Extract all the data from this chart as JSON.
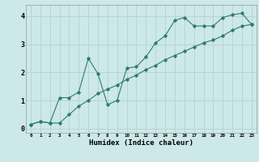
{
  "title": "",
  "xlabel": "Humidex (Indice chaleur)",
  "ylabel": "",
  "bg_color": "#cce8e8",
  "grid_color": "#b8d4d4",
  "line_color": "#2e7b6e",
  "xlim": [
    -0.5,
    23.5
  ],
  "ylim": [
    -0.15,
    4.4
  ],
  "xticks": [
    0,
    1,
    2,
    3,
    4,
    5,
    6,
    7,
    8,
    9,
    10,
    11,
    12,
    13,
    14,
    15,
    16,
    17,
    18,
    19,
    20,
    21,
    22,
    23
  ],
  "yticks": [
    0,
    1,
    2,
    3,
    4
  ],
  "line1_x": [
    0,
    1,
    2,
    3,
    4,
    5,
    6,
    7,
    8,
    9,
    10,
    11,
    12,
    13,
    14,
    15,
    16,
    17,
    18,
    19,
    20,
    21,
    22,
    23
  ],
  "line1_y": [
    0.15,
    0.25,
    0.2,
    1.1,
    1.1,
    1.3,
    2.5,
    1.95,
    0.85,
    1.0,
    2.15,
    2.2,
    2.55,
    3.05,
    3.3,
    3.85,
    3.95,
    3.65,
    3.65,
    3.65,
    3.95,
    4.05,
    4.1,
    3.7
  ],
  "line2_x": [
    0,
    1,
    2,
    3,
    4,
    5,
    6,
    7,
    8,
    9,
    10,
    11,
    12,
    13,
    14,
    15,
    16,
    17,
    18,
    19,
    20,
    21,
    22,
    23
  ],
  "line2_y": [
    0.15,
    0.25,
    0.2,
    0.2,
    0.5,
    0.8,
    1.0,
    1.25,
    1.4,
    1.55,
    1.75,
    1.9,
    2.1,
    2.25,
    2.45,
    2.6,
    2.75,
    2.9,
    3.05,
    3.15,
    3.3,
    3.5,
    3.65,
    3.7
  ],
  "marker_size": 1.8,
  "line_width": 0.8,
  "xtick_fontsize": 4.2,
  "ytick_fontsize": 6.0,
  "xlabel_fontsize": 6.5
}
